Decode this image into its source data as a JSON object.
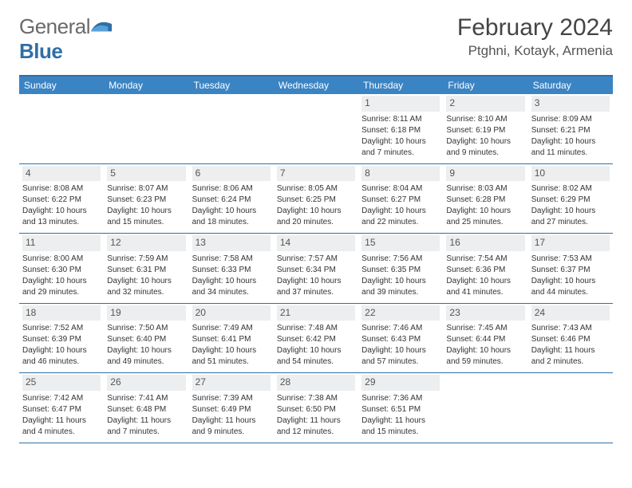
{
  "logo": {
    "text_general": "General",
    "text_blue": "Blue"
  },
  "header": {
    "month_title": "February 2024",
    "location": "Ptghni, Kotayk, Armenia"
  },
  "colors": {
    "header_bg": "#3b84c4",
    "header_border": "#2f6fa7",
    "date_bg": "#eceeef",
    "text": "#333333",
    "logo_gray": "#6a6a6a",
    "logo_blue": "#2f6fa7"
  },
  "day_names": [
    "Sunday",
    "Monday",
    "Tuesday",
    "Wednesday",
    "Thursday",
    "Friday",
    "Saturday"
  ],
  "weeks": [
    [
      {
        "date": "",
        "text": ""
      },
      {
        "date": "",
        "text": ""
      },
      {
        "date": "",
        "text": ""
      },
      {
        "date": "",
        "text": ""
      },
      {
        "date": "1",
        "sunrise": "Sunrise: 8:11 AM",
        "sunset": "Sunset: 6:18 PM",
        "daylight1": "Daylight: 10 hours",
        "daylight2": "and 7 minutes."
      },
      {
        "date": "2",
        "sunrise": "Sunrise: 8:10 AM",
        "sunset": "Sunset: 6:19 PM",
        "daylight1": "Daylight: 10 hours",
        "daylight2": "and 9 minutes."
      },
      {
        "date": "3",
        "sunrise": "Sunrise: 8:09 AM",
        "sunset": "Sunset: 6:21 PM",
        "daylight1": "Daylight: 10 hours",
        "daylight2": "and 11 minutes."
      }
    ],
    [
      {
        "date": "4",
        "sunrise": "Sunrise: 8:08 AM",
        "sunset": "Sunset: 6:22 PM",
        "daylight1": "Daylight: 10 hours",
        "daylight2": "and 13 minutes."
      },
      {
        "date": "5",
        "sunrise": "Sunrise: 8:07 AM",
        "sunset": "Sunset: 6:23 PM",
        "daylight1": "Daylight: 10 hours",
        "daylight2": "and 15 minutes."
      },
      {
        "date": "6",
        "sunrise": "Sunrise: 8:06 AM",
        "sunset": "Sunset: 6:24 PM",
        "daylight1": "Daylight: 10 hours",
        "daylight2": "and 18 minutes."
      },
      {
        "date": "7",
        "sunrise": "Sunrise: 8:05 AM",
        "sunset": "Sunset: 6:25 PM",
        "daylight1": "Daylight: 10 hours",
        "daylight2": "and 20 minutes."
      },
      {
        "date": "8",
        "sunrise": "Sunrise: 8:04 AM",
        "sunset": "Sunset: 6:27 PM",
        "daylight1": "Daylight: 10 hours",
        "daylight2": "and 22 minutes."
      },
      {
        "date": "9",
        "sunrise": "Sunrise: 8:03 AM",
        "sunset": "Sunset: 6:28 PM",
        "daylight1": "Daylight: 10 hours",
        "daylight2": "and 25 minutes."
      },
      {
        "date": "10",
        "sunrise": "Sunrise: 8:02 AM",
        "sunset": "Sunset: 6:29 PM",
        "daylight1": "Daylight: 10 hours",
        "daylight2": "and 27 minutes."
      }
    ],
    [
      {
        "date": "11",
        "sunrise": "Sunrise: 8:00 AM",
        "sunset": "Sunset: 6:30 PM",
        "daylight1": "Daylight: 10 hours",
        "daylight2": "and 29 minutes."
      },
      {
        "date": "12",
        "sunrise": "Sunrise: 7:59 AM",
        "sunset": "Sunset: 6:31 PM",
        "daylight1": "Daylight: 10 hours",
        "daylight2": "and 32 minutes."
      },
      {
        "date": "13",
        "sunrise": "Sunrise: 7:58 AM",
        "sunset": "Sunset: 6:33 PM",
        "daylight1": "Daylight: 10 hours",
        "daylight2": "and 34 minutes."
      },
      {
        "date": "14",
        "sunrise": "Sunrise: 7:57 AM",
        "sunset": "Sunset: 6:34 PM",
        "daylight1": "Daylight: 10 hours",
        "daylight2": "and 37 minutes."
      },
      {
        "date": "15",
        "sunrise": "Sunrise: 7:56 AM",
        "sunset": "Sunset: 6:35 PM",
        "daylight1": "Daylight: 10 hours",
        "daylight2": "and 39 minutes."
      },
      {
        "date": "16",
        "sunrise": "Sunrise: 7:54 AM",
        "sunset": "Sunset: 6:36 PM",
        "daylight1": "Daylight: 10 hours",
        "daylight2": "and 41 minutes."
      },
      {
        "date": "17",
        "sunrise": "Sunrise: 7:53 AM",
        "sunset": "Sunset: 6:37 PM",
        "daylight1": "Daylight: 10 hours",
        "daylight2": "and 44 minutes."
      }
    ],
    [
      {
        "date": "18",
        "sunrise": "Sunrise: 7:52 AM",
        "sunset": "Sunset: 6:39 PM",
        "daylight1": "Daylight: 10 hours",
        "daylight2": "and 46 minutes."
      },
      {
        "date": "19",
        "sunrise": "Sunrise: 7:50 AM",
        "sunset": "Sunset: 6:40 PM",
        "daylight1": "Daylight: 10 hours",
        "daylight2": "and 49 minutes."
      },
      {
        "date": "20",
        "sunrise": "Sunrise: 7:49 AM",
        "sunset": "Sunset: 6:41 PM",
        "daylight1": "Daylight: 10 hours",
        "daylight2": "and 51 minutes."
      },
      {
        "date": "21",
        "sunrise": "Sunrise: 7:48 AM",
        "sunset": "Sunset: 6:42 PM",
        "daylight1": "Daylight: 10 hours",
        "daylight2": "and 54 minutes."
      },
      {
        "date": "22",
        "sunrise": "Sunrise: 7:46 AM",
        "sunset": "Sunset: 6:43 PM",
        "daylight1": "Daylight: 10 hours",
        "daylight2": "and 57 minutes."
      },
      {
        "date": "23",
        "sunrise": "Sunrise: 7:45 AM",
        "sunset": "Sunset: 6:44 PM",
        "daylight1": "Daylight: 10 hours",
        "daylight2": "and 59 minutes."
      },
      {
        "date": "24",
        "sunrise": "Sunrise: 7:43 AM",
        "sunset": "Sunset: 6:46 PM",
        "daylight1": "Daylight: 11 hours",
        "daylight2": "and 2 minutes."
      }
    ],
    [
      {
        "date": "25",
        "sunrise": "Sunrise: 7:42 AM",
        "sunset": "Sunset: 6:47 PM",
        "daylight1": "Daylight: 11 hours",
        "daylight2": "and 4 minutes."
      },
      {
        "date": "26",
        "sunrise": "Sunrise: 7:41 AM",
        "sunset": "Sunset: 6:48 PM",
        "daylight1": "Daylight: 11 hours",
        "daylight2": "and 7 minutes."
      },
      {
        "date": "27",
        "sunrise": "Sunrise: 7:39 AM",
        "sunset": "Sunset: 6:49 PM",
        "daylight1": "Daylight: 11 hours",
        "daylight2": "and 9 minutes."
      },
      {
        "date": "28",
        "sunrise": "Sunrise: 7:38 AM",
        "sunset": "Sunset: 6:50 PM",
        "daylight1": "Daylight: 11 hours",
        "daylight2": "and 12 minutes."
      },
      {
        "date": "29",
        "sunrise": "Sunrise: 7:36 AM",
        "sunset": "Sunset: 6:51 PM",
        "daylight1": "Daylight: 11 hours",
        "daylight2": "and 15 minutes."
      },
      {
        "date": "",
        "text": ""
      },
      {
        "date": "",
        "text": ""
      }
    ]
  ]
}
